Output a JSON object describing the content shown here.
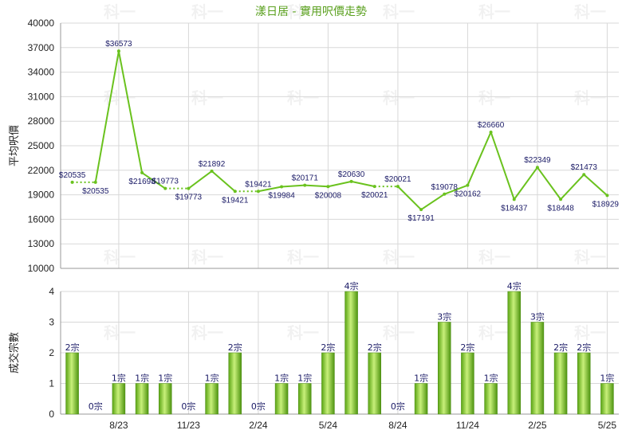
{
  "chart_data": [
    {
      "type": "line",
      "title": "漾日居 - 實用呎價走勢",
      "ylabel": "平均呎價",
      "ylim": [
        10000,
        40000
      ],
      "yticks": [
        10000,
        13000,
        16000,
        19000,
        22000,
        25000,
        28000,
        31000,
        34000,
        37000,
        40000
      ],
      "xticks": [
        "8/23",
        "11/23",
        "2/24",
        "5/24",
        "8/24",
        "11/24",
        "2/25",
        "5/25"
      ],
      "series": [
        {
          "values": [
            20535,
            20535,
            36573,
            21698,
            19773,
            19773,
            21892,
            19421,
            19421,
            19984,
            20171,
            20008,
            20630,
            20021,
            20021,
            17191,
            19078,
            20162,
            26660,
            18437,
            22349,
            18448,
            21473,
            18929
          ],
          "labels": [
            "$20535",
            "$20535",
            "$36573",
            "$21698",
            "$19773",
            "$19773",
            "$21892",
            "$19421",
            "$19421",
            "$19984",
            "$20171",
            "$20008",
            "$20630",
            "$20021",
            "$20021",
            "$17191",
            "$19078",
            "$20162",
            "$26660",
            "$18437",
            "$22349",
            "$18448",
            "$21473",
            "$18929"
          ],
          "dotted_segments": [
            0,
            4,
            7,
            13
          ]
        }
      ],
      "color": "#6ac21e",
      "grid": true
    },
    {
      "type": "bar",
      "ylabel": "成交宗數",
      "ylim": [
        0,
        4
      ],
      "yticks": [
        0,
        1,
        2,
        3,
        4
      ],
      "xticks": [
        "8/23",
        "11/23",
        "2/24",
        "5/24",
        "8/24",
        "11/24",
        "2/25",
        "5/25"
      ],
      "values": [
        2,
        0,
        1,
        1,
        1,
        0,
        1,
        2,
        0,
        1,
        1,
        2,
        4,
        2,
        0,
        1,
        3,
        2,
        1,
        4,
        3,
        2,
        2,
        1
      ],
      "labels": [
        "2宗",
        "0宗",
        "1宗",
        "1宗",
        "1宗",
        "0宗",
        "1宗",
        "2宗",
        "0宗",
        "1宗",
        "1宗",
        "2宗",
        "4宗",
        "2宗",
        "0宗",
        "1宗",
        "3宗",
        "2宗",
        "1宗",
        "4宗",
        "3宗",
        "2宗",
        "2宗",
        "1宗"
      ],
      "color": "#7cc520",
      "grid": true
    }
  ],
  "watermark": "科一"
}
